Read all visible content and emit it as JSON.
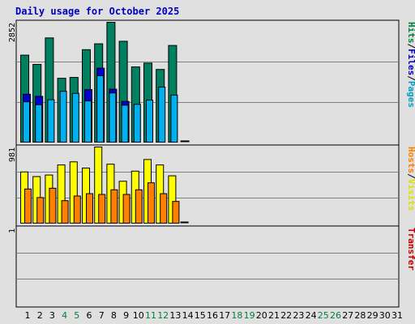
{
  "chart_data": [
    {
      "type": "bar",
      "panel": "hits-files-pages",
      "title": "Daily usage for October 2025",
      "ylabel_parts": [
        {
          "text": "Hits",
          "color": "#008040"
        },
        {
          "text": "/",
          "color": "#000000"
        },
        {
          "text": "Files",
          "color": "#0000c0"
        },
        {
          "text": "/",
          "color": "#000000"
        },
        {
          "text": "Pages",
          "color": "#00a0c0"
        }
      ],
      "ymax_label": "2852",
      "ylim": [
        0,
        2852
      ],
      "grid": true,
      "categories": [
        "1",
        "2",
        "3",
        "4",
        "5",
        "6",
        "7",
        "8",
        "9",
        "10",
        "11",
        "12",
        "13",
        "14",
        "15",
        "16",
        "17",
        "18",
        "19",
        "20",
        "21",
        "22",
        "23",
        "24",
        "25",
        "26",
        "27",
        "28",
        "29",
        "30",
        "31"
      ],
      "weekend_days": [
        4,
        5,
        11,
        12,
        18,
        19,
        25,
        26
      ],
      "weekend_color": "#008040",
      "series": [
        {
          "name": "Hits",
          "color": "#008060",
          "values": [
            2070,
            1850,
            2480,
            1520,
            1540,
            2200,
            2340,
            2852,
            2400,
            1790,
            1880,
            1730,
            2300,
            30,
            0,
            0,
            0,
            0,
            0,
            0,
            0,
            0,
            0,
            0,
            0,
            0,
            0,
            0,
            0,
            0,
            0
          ]
        },
        {
          "name": "Files",
          "color": "#0000d0",
          "values": [
            1140,
            1090,
            0,
            0,
            0,
            1250,
            1760,
            1260,
            970,
            0,
            0,
            0,
            0,
            0,
            0,
            0,
            0,
            0,
            0,
            0,
            0,
            0,
            0,
            0,
            0,
            0,
            0,
            0,
            0,
            0,
            0
          ]
        },
        {
          "name": "Pages",
          "color": "#00b0f0",
          "values": [
            960,
            890,
            1010,
            1210,
            1160,
            980,
            1580,
            1170,
            880,
            900,
            1000,
            1310,
            1120,
            0,
            0,
            0,
            0,
            0,
            0,
            0,
            0,
            0,
            0,
            0,
            0,
            0,
            0,
            0,
            0,
            0,
            0
          ]
        }
      ]
    },
    {
      "type": "bar",
      "panel": "visits-hosts",
      "ylabel_parts": [
        {
          "text": "Hosts",
          "color": "#ff8000"
        },
        {
          "text": "/",
          "color": "#000000"
        },
        {
          "text": "Visits",
          "color": "#e0e000"
        }
      ],
      "ymax_label": "981",
      "ylim": [
        0,
        981
      ],
      "grid": true,
      "series": [
        {
          "name": "Visits",
          "color": "#ffff00",
          "values": [
            660,
            600,
            620,
            750,
            790,
            710,
            981,
            760,
            540,
            670,
            820,
            750,
            610,
            15,
            0,
            0,
            0,
            0,
            0,
            0,
            0,
            0,
            0,
            0,
            0,
            0,
            0,
            0,
            0,
            0,
            0
          ]
        },
        {
          "name": "Hosts",
          "color": "#ff8000",
          "values": [
            440,
            330,
            450,
            290,
            350,
            380,
            370,
            430,
            370,
            430,
            520,
            380,
            280,
            0,
            0,
            0,
            0,
            0,
            0,
            0,
            0,
            0,
            0,
            0,
            0,
            0,
            0,
            0,
            0,
            0,
            0
          ]
        }
      ]
    },
    {
      "type": "bar",
      "panel": "transfer",
      "ylabel_parts": [
        {
          "text": "Transfer",
          "color": "#c00000"
        }
      ],
      "ymax_label": "1",
      "ylim": [
        0,
        1
      ],
      "grid": true,
      "series": [
        {
          "name": "Transfer",
          "color": "#c00000",
          "values": [
            0,
            0,
            0,
            0,
            0,
            0,
            0,
            0,
            0,
            0,
            0,
            0,
            0,
            0,
            0,
            0,
            0,
            0,
            0,
            0,
            0,
            0,
            0,
            0,
            0,
            0,
            0,
            0,
            0,
            0,
            0
          ]
        }
      ]
    }
  ]
}
